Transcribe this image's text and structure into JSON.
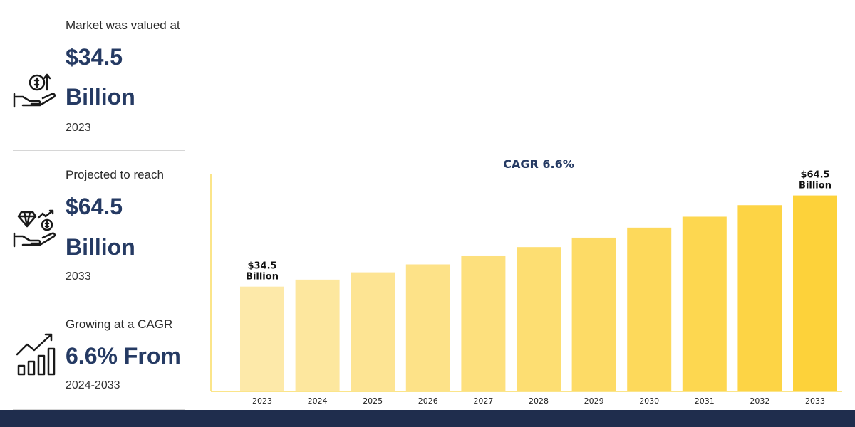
{
  "stats": [
    {
      "label": "Market was valued at",
      "value_line1": "$34.5",
      "value_line2": "Billion",
      "sub": "2023",
      "icon": "money-hand-growth-icon"
    },
    {
      "label": "Projected to reach",
      "value_line1": "$64.5",
      "value_line2": "Billion",
      "sub": "2033",
      "icon": "diamond-hand-icon"
    },
    {
      "label": "Growing at a CAGR",
      "value_line1": "6.6% From",
      "sub": "2024-2033",
      "icon": "bar-chart-growth-icon"
    }
  ],
  "colors": {
    "accent_dark": "#253a63",
    "bar_light": "#fde9a9",
    "bar_dark": "#fdd23a",
    "axis": "#fbe58a",
    "footer": "#1f2d4d"
  },
  "chart_data": {
    "type": "bar",
    "title": "CAGR 6.6%",
    "categories": [
      "2023",
      "2024",
      "2025",
      "2026",
      "2027",
      "2028",
      "2029",
      "2030",
      "2031",
      "2032",
      "2033"
    ],
    "values": [
      34.5,
      36.8,
      39.2,
      41.8,
      44.5,
      47.5,
      50.6,
      53.9,
      57.5,
      61.3,
      64.5
    ],
    "ylim": [
      0,
      70
    ],
    "xlabel": "",
    "ylabel": "",
    "data_labels": [
      {
        "index": 0,
        "line1": "$34.5",
        "line2": "Billion"
      },
      {
        "index": 10,
        "line1": "$64.5",
        "line2": "Billion"
      }
    ]
  }
}
